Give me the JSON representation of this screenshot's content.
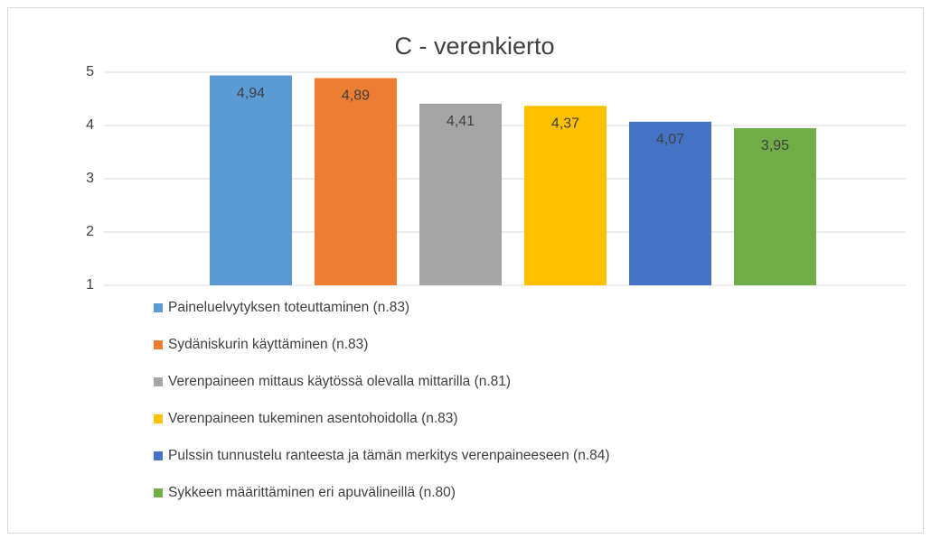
{
  "chart_data": {
    "type": "bar",
    "title": "C - verenkierto",
    "categories": [
      null
    ],
    "series": [
      {
        "name": "Paineluelvytyksen toteuttaminen (n.83)",
        "color": "#5b9bd5",
        "values": [
          4.94
        ],
        "value_labels": [
          "4,94"
        ]
      },
      {
        "name": "Sydäniskurin käyttäminen (n.83)",
        "color": "#ed7d31",
        "values": [
          4.89
        ],
        "value_labels": [
          "4,89"
        ]
      },
      {
        "name": "Verenpaineen mittaus käytössä olevalla mittarilla (n.81)",
        "color": "#a5a5a5",
        "values": [
          4.41
        ],
        "value_labels": [
          "4,41"
        ]
      },
      {
        "name": "Verenpaineen tukeminen asentohoidolla (n.83)",
        "color": "#ffc000",
        "values": [
          4.37
        ],
        "value_labels": [
          "4,37"
        ]
      },
      {
        "name": "Pulssin tunnustelu ranteesta ja tämän merkitys verenpaineeseen (n.84)",
        "color": "#4472c4",
        "values": [
          4.07
        ],
        "value_labels": [
          "4,07"
        ]
      },
      {
        "name": "Sykkeen määrittäminen eri apuvälineillä (n.80)",
        "color": "#70ad47",
        "values": [
          3.95
        ],
        "value_labels": [
          "3,95"
        ]
      }
    ],
    "ylim": [
      1,
      5
    ],
    "yticks": [
      1,
      2,
      3,
      4,
      5
    ],
    "grid": true
  }
}
